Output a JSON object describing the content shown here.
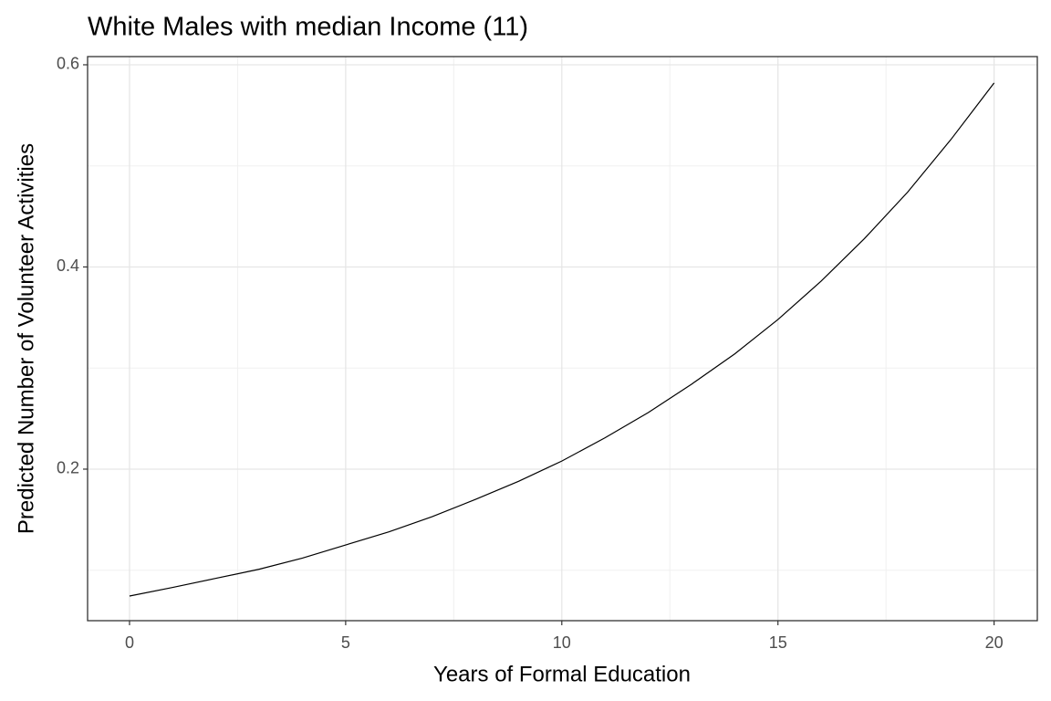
{
  "chart_data": {
    "type": "line",
    "title": "White Males with median Income (11)",
    "xlabel": "Years of Formal Education",
    "ylabel": "Predicted Number of Volunteer Activities",
    "x": [
      0,
      1,
      2,
      3,
      4,
      5,
      6,
      7,
      8,
      9,
      10,
      11,
      12,
      13,
      14,
      15,
      16,
      17,
      18,
      19,
      20
    ],
    "values": [
      0.0745,
      0.083,
      0.092,
      0.101,
      0.112,
      0.125,
      0.138,
      0.153,
      0.17,
      0.188,
      0.208,
      0.231,
      0.256,
      0.284,
      0.314,
      0.348,
      0.386,
      0.428,
      0.474,
      0.526,
      0.582
    ],
    "color": "#000000",
    "xlim": [
      -0.97,
      21.0
    ],
    "ylim": [
      0.0501,
      0.6081
    ],
    "xticks": [
      0,
      5,
      10,
      15,
      20
    ],
    "yticks": [
      0.2,
      0.4,
      0.6
    ],
    "minor_xgrid": [
      2.5,
      7.5,
      12.5,
      17.5
    ],
    "minor_ygrid": [
      0.1,
      0.3,
      0.5
    ],
    "grid": true
  }
}
